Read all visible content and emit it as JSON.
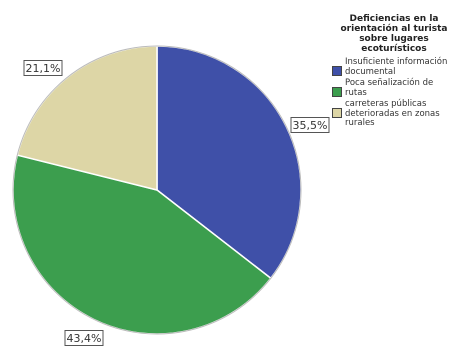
{
  "chart_data": {
    "type": "pie",
    "legend_title": "Deficiencias en la orientación al turista sobre lugares ecoturísticos",
    "legend_position": "right",
    "slices": [
      {
        "name": "Insuficiente información documental",
        "value": 35.5,
        "label": "35,5%",
        "color": "#3f50a8"
      },
      {
        "name": "Poca señalización de rutas",
        "value": 43.4,
        "label": "43,4%",
        "color": "#3c9e4e"
      },
      {
        "name": "carreteras públicas deterioradas en zonas rurales",
        "value": 21.1,
        "label": "21,1%",
        "color": "#ddd6a6"
      }
    ]
  }
}
